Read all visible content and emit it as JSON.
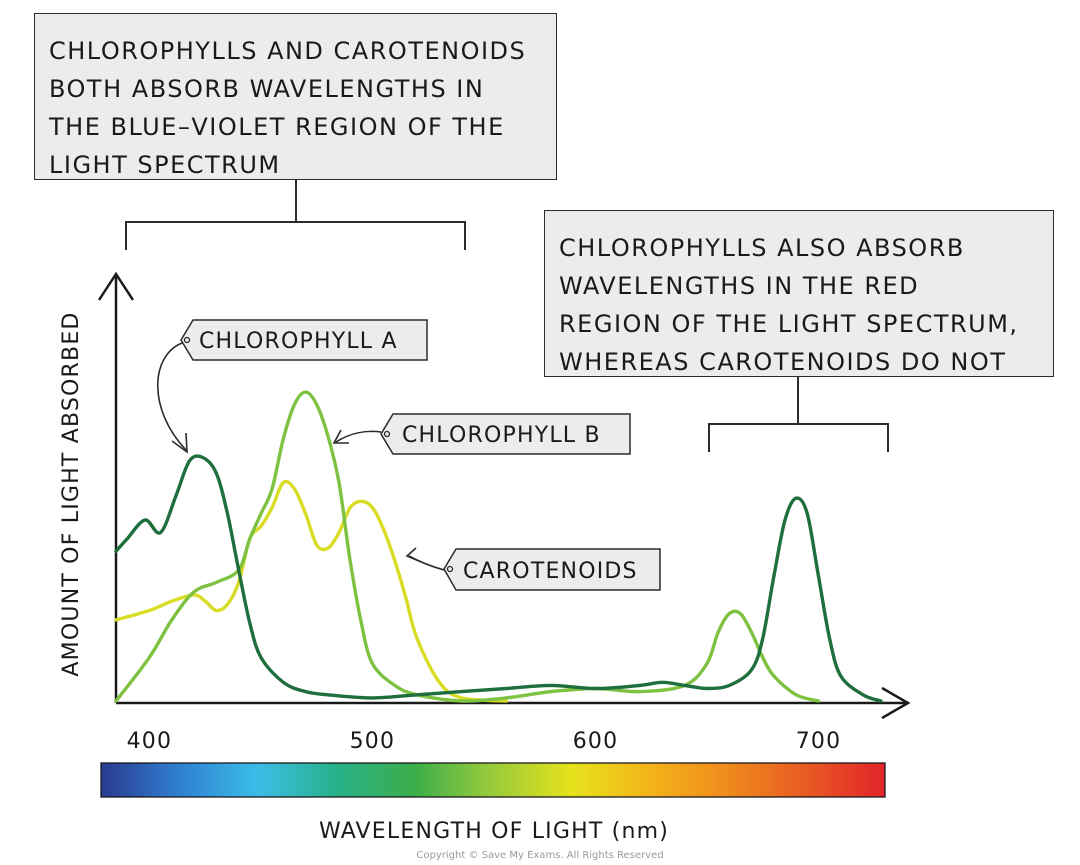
{
  "chart_data": {
    "type": "line",
    "title": "",
    "xlabel": "WAVELENGTH OF LIGHT (nm)",
    "ylabel": "AMOUNT OF LIGHT ABSORBED",
    "xlim": [
      385,
      730
    ],
    "ylim": [
      0,
      1
    ],
    "x_ticks": [
      400,
      500,
      600,
      700
    ],
    "grid": false,
    "series": [
      {
        "name": "CHLOROPHYLL A",
        "color": "#1f6e3d",
        "x": [
          385,
          390,
          398,
          405,
          412,
          418,
          424,
          430,
          435,
          440,
          445,
          450,
          460,
          470,
          480,
          500,
          520,
          540,
          560,
          580,
          600,
          620,
          630,
          640,
          650,
          660,
          670,
          675,
          680,
          685,
          690,
          695,
          700,
          705,
          710,
          720,
          728
        ],
        "y": [
          0.48,
          0.52,
          0.58,
          0.54,
          0.66,
          0.77,
          0.78,
          0.73,
          0.6,
          0.42,
          0.25,
          0.14,
          0.06,
          0.03,
          0.02,
          0.01,
          0.02,
          0.03,
          0.04,
          0.05,
          0.04,
          0.05,
          0.06,
          0.05,
          0.04,
          0.05,
          0.1,
          0.2,
          0.4,
          0.58,
          0.65,
          0.6,
          0.4,
          0.2,
          0.08,
          0.02,
          0.0
        ]
      },
      {
        "name": "CHLOROPHYLL B",
        "color": "#7ec242",
        "x": [
          385,
          400,
          410,
          420,
          430,
          440,
          445,
          450,
          455,
          460,
          465,
          470,
          475,
          480,
          485,
          490,
          495,
          500,
          510,
          520,
          540,
          560,
          580,
          600,
          620,
          640,
          650,
          655,
          660,
          665,
          670,
          675,
          680,
          690,
          700
        ],
        "y": [
          0.0,
          0.14,
          0.26,
          0.35,
          0.38,
          0.42,
          0.52,
          0.6,
          0.68,
          0.84,
          0.95,
          0.99,
          0.95,
          0.85,
          0.7,
          0.45,
          0.25,
          0.12,
          0.05,
          0.02,
          0.0,
          0.01,
          0.03,
          0.04,
          0.03,
          0.05,
          0.12,
          0.22,
          0.28,
          0.28,
          0.22,
          0.14,
          0.08,
          0.02,
          0.0
        ]
      },
      {
        "name": "CAROTENOIDS",
        "color": "#d8dc24",
        "x": [
          385,
          400,
          410,
          420,
          425,
          430,
          435,
          440,
          445,
          450,
          455,
          460,
          465,
          470,
          475,
          480,
          485,
          490,
          495,
          500,
          505,
          510,
          515,
          520,
          530,
          540,
          560
        ],
        "y": [
          0.26,
          0.29,
          0.32,
          0.34,
          0.32,
          0.29,
          0.31,
          0.38,
          0.52,
          0.56,
          0.62,
          0.7,
          0.68,
          0.6,
          0.5,
          0.49,
          0.54,
          0.62,
          0.64,
          0.62,
          0.55,
          0.45,
          0.33,
          0.2,
          0.06,
          0.01,
          0.0
        ]
      }
    ]
  },
  "labels": {
    "tag_chl_a": "CHLOROPHYLL A",
    "tag_chl_b": "CHLOROPHYLL B",
    "tag_carot": "CAROTENOIDS"
  },
  "callouts": {
    "left": "CHLOROPHYLLS AND CAROTENOIDS\nBOTH ABSORB WAVELENGTHS IN\nTHE BLUE–VIOLET REGION OF THE\nLIGHT SPECTRUM",
    "right": "CHLOROPHYLLS ALSO ABSORB\nWAVELENGTHS IN THE RED\nREGION OF THE LIGHT SPECTRUM,\nWHEREAS CAROTENOIDS DO NOT"
  },
  "spectrum_colors": [
    "#2b3a8f",
    "#2f7fd0",
    "#3bbde8",
    "#27b089",
    "#3cae4a",
    "#9acb3a",
    "#e6e21c",
    "#f3b319",
    "#ef8a1c",
    "#e85a23",
    "#e2242a"
  ],
  "copyright": "Copyright © Save My Exams. All Rights Reserved"
}
